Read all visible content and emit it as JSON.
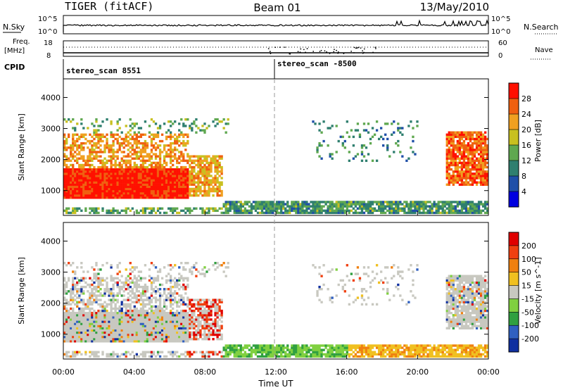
{
  "header": {
    "radar": "TIGER (fitACF)",
    "beam": "Beam 01",
    "date": "13/May/2010"
  },
  "panels": {
    "nsky_label": "N.Sky",
    "nsky_top": "10^5",
    "nsky_bottom": "10^0",
    "nsearch_label": "N.Search",
    "right_top": "10^5",
    "right_bottom": "10^0",
    "freq_label": "Freq.",
    "freq_unit": "[MHz]",
    "freq_top": "18",
    "freq_bottom": "8",
    "nave_top": "60",
    "nave_bottom": "0",
    "nave_label": "Nave",
    "cpid_label": "CPID",
    "cpid_left": "stereo_scan 8551",
    "cpid_right": "stereo_scan -8500"
  },
  "chart_data": [
    {
      "type": "heatmap",
      "title": "",
      "ylabel": "Slant Range [km]",
      "xlabel": "Time UT",
      "ylim": [
        200,
        4600
      ],
      "xlim": [
        0,
        24
      ],
      "yticks": [
        "1000",
        "2000",
        "3000",
        "4000"
      ],
      "xticks": [
        "00:00",
        "04:00",
        "08:00",
        "12:00",
        "16:00",
        "20:00",
        "00:00"
      ],
      "colorbar": {
        "label": "Power [dB]",
        "ticks": [
          "4",
          "8",
          "12",
          "16",
          "20",
          "24",
          "28"
        ],
        "colors": [
          "#0000e0",
          "#1f4fa8",
          "#2f7f6f",
          "#5fa850",
          "#c8c020",
          "#f0a020",
          "#f06010",
          "#ff1000"
        ]
      }
    },
    {
      "type": "heatmap",
      "title": "",
      "ylabel": "Slant Range [km]",
      "xlabel": "Time UT",
      "ylim": [
        200,
        4600
      ],
      "xlim": [
        0,
        24
      ],
      "yticks": [
        "1000",
        "2000",
        "3000",
        "4000"
      ],
      "xticks": [
        "00:00",
        "04:00",
        "08:00",
        "12:00",
        "16:00",
        "20:00",
        "00:00"
      ],
      "colorbar": {
        "label": "Velocity [m s^-1]",
        "ticks": [
          "200",
          "100",
          "50",
          "15",
          "-15",
          "-50",
          "-100",
          "-200"
        ],
        "colors": [
          "#1030a0",
          "#3060c0",
          "#30a040",
          "#80d040",
          "#c8c8c0",
          "#f0c020",
          "#f08010",
          "#f04010",
          "#e00000"
        ]
      }
    }
  ]
}
